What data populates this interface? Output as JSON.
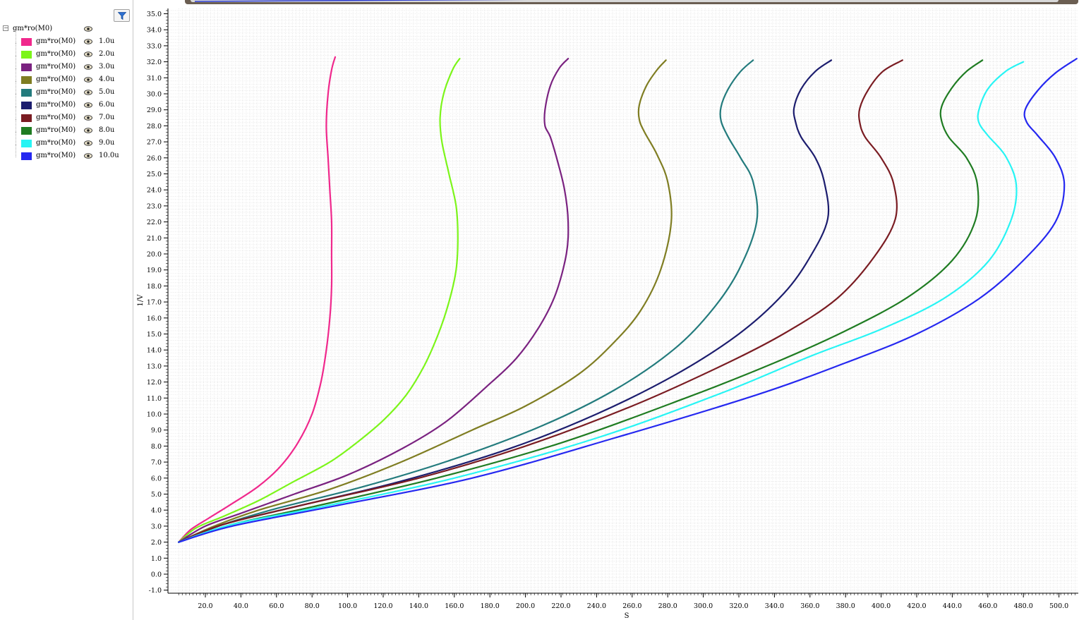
{
  "sidebar": {
    "filter_icon": "filter-funnel-icon",
    "root_label": "gm*ro(M0)",
    "items": [
      {
        "name": "gm*ro(M0)",
        "value": "1.0u",
        "color": "#f0288c"
      },
      {
        "name": "gm*ro(M0)",
        "value": "2.0u",
        "color": "#7cf51a"
      },
      {
        "name": "gm*ro(M0)",
        "value": "3.0u",
        "color": "#7a2280"
      },
      {
        "name": "gm*ro(M0)",
        "value": "4.0u",
        "color": "#7f7d22"
      },
      {
        "name": "gm*ro(M0)",
        "value": "5.0u",
        "color": "#237b7d"
      },
      {
        "name": "gm*ro(M0)",
        "value": "6.0u",
        "color": "#1c1d6e"
      },
      {
        "name": "gm*ro(M0)",
        "value": "7.0u",
        "color": "#7a1c22"
      },
      {
        "name": "gm*ro(M0)",
        "value": "8.0u",
        "color": "#1f7c22"
      },
      {
        "name": "gm*ro(M0)",
        "value": "9.0u",
        "color": "#28f4f4"
      },
      {
        "name": "gm*ro(M0)",
        "value": "10.0u",
        "color": "#2528f0"
      }
    ]
  },
  "chart_data": {
    "type": "line",
    "title": "",
    "xlabel": "S",
    "ylabel": "1/V",
    "xlim": [
      5,
      510
    ],
    "ylim": [
      -1,
      35.5
    ],
    "xticks": [
      "20.0",
      "40.0",
      "60.0",
      "80.0",
      "100.0",
      "120.0",
      "140.0",
      "160.0",
      "180.0",
      "200.0",
      "220.0",
      "240.0",
      "260.0",
      "280.0",
      "300.0",
      "320.0",
      "340.0",
      "360.0",
      "380.0",
      "400.0",
      "420.0",
      "440.0",
      "460.0",
      "480.0",
      "500.0"
    ],
    "yticks": [
      "-1.0",
      "0.0",
      "1.0",
      "2.0",
      "3.0",
      "4.0",
      "5.0",
      "6.0",
      "7.0",
      "8.0",
      "9.0",
      "10.0",
      "11.0",
      "12.0",
      "13.0",
      "14.0",
      "15.0",
      "16.0",
      "17.0",
      "18.0",
      "19.0",
      "20.0",
      "21.0",
      "22.0",
      "23.0",
      "24.0",
      "25.0",
      "26.0",
      "27.0",
      "28.0",
      "29.0",
      "30.0",
      "31.0",
      "32.0",
      "33.0",
      "34.0",
      "35.0"
    ],
    "grid": true,
    "legend": "left-panel",
    "series": [
      {
        "name": "1.0u",
        "color": "#f0288c",
        "points": [
          [
            5,
            2
          ],
          [
            12,
            2.8
          ],
          [
            22,
            3.5
          ],
          [
            35,
            4.4
          ],
          [
            50,
            5.5
          ],
          [
            62,
            6.7
          ],
          [
            72,
            8.2
          ],
          [
            80,
            10
          ],
          [
            85,
            12
          ],
          [
            88,
            14
          ],
          [
            90,
            16
          ],
          [
            91,
            18
          ],
          [
            91,
            20
          ],
          [
            91,
            22
          ],
          [
            90,
            24
          ],
          [
            89,
            26
          ],
          [
            88,
            28
          ],
          [
            89,
            30
          ],
          [
            91,
            31.5
          ],
          [
            93,
            32.3
          ]
        ]
      },
      {
        "name": "2.0u",
        "color": "#7cf51a",
        "points": [
          [
            5,
            2
          ],
          [
            15,
            2.9
          ],
          [
            30,
            3.6
          ],
          [
            50,
            4.6
          ],
          [
            70,
            5.8
          ],
          [
            90,
            7.0
          ],
          [
            105,
            8.2
          ],
          [
            120,
            9.6
          ],
          [
            133,
            11.2
          ],
          [
            143,
            13.0
          ],
          [
            151,
            15.0
          ],
          [
            157,
            17.0
          ],
          [
            161,
            19.0
          ],
          [
            162,
            21.0
          ],
          [
            161,
            23.0
          ],
          [
            157,
            25.0
          ],
          [
            153,
            27.0
          ],
          [
            152,
            28.5
          ],
          [
            154,
            30.0
          ],
          [
            159,
            31.5
          ],
          [
            163,
            32.2
          ]
        ]
      },
      {
        "name": "3.0u",
        "color": "#7a2280",
        "points": [
          [
            5,
            2
          ],
          [
            20,
            3.0
          ],
          [
            40,
            3.8
          ],
          [
            70,
            5.0
          ],
          [
            100,
            6.2
          ],
          [
            130,
            7.8
          ],
          [
            155,
            9.5
          ],
          [
            178,
            11.7
          ],
          [
            195,
            13.5
          ],
          [
            208,
            15.5
          ],
          [
            217,
            17.5
          ],
          [
            223,
            20
          ],
          [
            224,
            22
          ],
          [
            222,
            24
          ],
          [
            218,
            25.8
          ],
          [
            214,
            27.3
          ],
          [
            211,
            28
          ],
          [
            211,
            29
          ],
          [
            214,
            30.5
          ],
          [
            219,
            31.6
          ],
          [
            224,
            32.2
          ]
        ]
      },
      {
        "name": "4.0u",
        "color": "#7f7d22",
        "points": [
          [
            5,
            2
          ],
          [
            25,
            3.0
          ],
          [
            50,
            4.0
          ],
          [
            90,
            5.3
          ],
          [
            130,
            7.0
          ],
          [
            170,
            9.0
          ],
          [
            200,
            10.5
          ],
          [
            230,
            12.5
          ],
          [
            250,
            14.5
          ],
          [
            265,
            16.5
          ],
          [
            276,
            19
          ],
          [
            282,
            22
          ],
          [
            280,
            24.5
          ],
          [
            274,
            26.2
          ],
          [
            267,
            27.6
          ],
          [
            264,
            28.4
          ],
          [
            264,
            29.3
          ],
          [
            268,
            30.5
          ],
          [
            274,
            31.5
          ],
          [
            279,
            32.1
          ]
        ]
      },
      {
        "name": "5.0u",
        "color": "#237b7d",
        "points": [
          [
            5,
            2
          ],
          [
            30,
            3.1
          ],
          [
            60,
            4.1
          ],
          [
            110,
            5.5
          ],
          [
            160,
            7.2
          ],
          [
            210,
            9.3
          ],
          [
            250,
            11.5
          ],
          [
            283,
            14.0
          ],
          [
            305,
            16.5
          ],
          [
            320,
            19
          ],
          [
            330,
            22
          ],
          [
            328,
            24.5
          ],
          [
            321,
            26
          ],
          [
            314,
            27.3
          ],
          [
            310,
            28.3
          ],
          [
            310,
            29.2
          ],
          [
            314,
            30.3
          ],
          [
            321,
            31.4
          ],
          [
            328,
            32.1
          ]
        ]
      },
      {
        "name": "6.0u",
        "color": "#1c1d6e",
        "points": [
          [
            5,
            2
          ],
          [
            30,
            3.1
          ],
          [
            70,
            4.2
          ],
          [
            130,
            5.8
          ],
          [
            190,
            7.8
          ],
          [
            240,
            10
          ],
          [
            285,
            12.5
          ],
          [
            320,
            15.0
          ],
          [
            345,
            17.5
          ],
          [
            360,
            19.8
          ],
          [
            370,
            22.2
          ],
          [
            368,
            24.5
          ],
          [
            363,
            26
          ],
          [
            355,
            27.3
          ],
          [
            352,
            28.2
          ],
          [
            351,
            29.1
          ],
          [
            355,
            30.3
          ],
          [
            363,
            31.4
          ],
          [
            372,
            32.1
          ]
        ]
      },
      {
        "name": "7.0u",
        "color": "#7a1c22",
        "points": [
          [
            5,
            2
          ],
          [
            30,
            3.1
          ],
          [
            70,
            4.2
          ],
          [
            140,
            6.0
          ],
          [
            200,
            8.0
          ],
          [
            260,
            10.5
          ],
          [
            310,
            13
          ],
          [
            345,
            15
          ],
          [
            375,
            17.2
          ],
          [
            396,
            19.8
          ],
          [
            408,
            22.2
          ],
          [
            407,
            24.4
          ],
          [
            400,
            26
          ],
          [
            391,
            27.3
          ],
          [
            388,
            28.2
          ],
          [
            388,
            29.1
          ],
          [
            393,
            30.3
          ],
          [
            401,
            31.4
          ],
          [
            412,
            32.1
          ]
        ]
      },
      {
        "name": "8.0u",
        "color": "#1f7c22",
        "points": [
          [
            5,
            2
          ],
          [
            35,
            3.1
          ],
          [
            80,
            4.2
          ],
          [
            150,
            6.0
          ],
          [
            220,
            8.2
          ],
          [
            290,
            11
          ],
          [
            340,
            13.2
          ],
          [
            380,
            15.2
          ],
          [
            415,
            17.3
          ],
          [
            440,
            19.6
          ],
          [
            453,
            22.1
          ],
          [
            454,
            24.4
          ],
          [
            448,
            26
          ],
          [
            438,
            27.3
          ],
          [
            434,
            28.3
          ],
          [
            434,
            29.2
          ],
          [
            440,
            30.4
          ],
          [
            448,
            31.4
          ],
          [
            457,
            32.1
          ]
        ]
      },
      {
        "name": "9.0u",
        "color": "#28f4f4",
        "points": [
          [
            5,
            2
          ],
          [
            35,
            3.1
          ],
          [
            85,
            4.2
          ],
          [
            160,
            6.0
          ],
          [
            240,
            8.5
          ],
          [
            310,
            11.3
          ],
          [
            360,
            13.6
          ],
          [
            400,
            15.3
          ],
          [
            435,
            17.2
          ],
          [
            460,
            19.5
          ],
          [
            473,
            22.1
          ],
          [
            476,
            24.3
          ],
          [
            470,
            26.1
          ],
          [
            460,
            27.4
          ],
          [
            455,
            28.2
          ],
          [
            455,
            29.0
          ],
          [
            460,
            30.3
          ],
          [
            470,
            31.4
          ],
          [
            480,
            32.0
          ]
        ]
      },
      {
        "name": "10.0u",
        "color": "#2528f0",
        "points": [
          [
            5,
            2
          ],
          [
            35,
            3.0
          ],
          [
            90,
            4.2
          ],
          [
            170,
            6.0
          ],
          [
            250,
            8.5
          ],
          [
            330,
            11.2
          ],
          [
            380,
            13.2
          ],
          [
            420,
            15.0
          ],
          [
            455,
            17.2
          ],
          [
            480,
            19.6
          ],
          [
            498,
            22
          ],
          [
            503,
            24.3
          ],
          [
            498,
            26
          ],
          [
            488,
            27.4
          ],
          [
            482,
            28.2
          ],
          [
            481,
            29.0
          ],
          [
            488,
            30.2
          ],
          [
            498,
            31.3
          ],
          [
            510,
            32.2
          ]
        ]
      }
    ]
  }
}
